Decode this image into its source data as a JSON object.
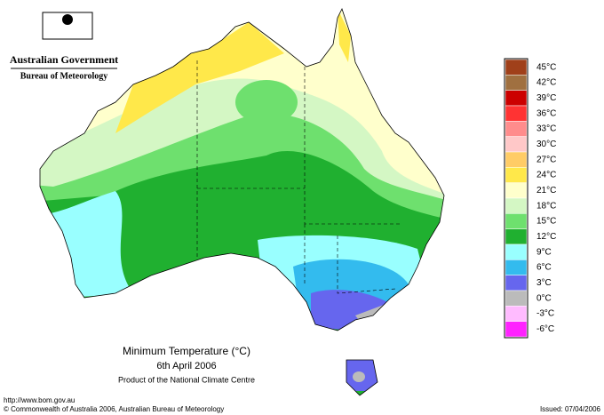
{
  "header": {
    "government": "Australian Government",
    "bureau": "Bureau of Meteorology"
  },
  "title": {
    "line1": "Minimum Temperature (°C)",
    "line2": "6th April 2006",
    "line3": "Product of the National Climate Centre"
  },
  "legend": [
    {
      "label": "45°C",
      "color": "#a0401a"
    },
    {
      "label": "42°C",
      "color": "#a07040"
    },
    {
      "label": "39°C",
      "color": "#cc0000"
    },
    {
      "label": "36°C",
      "color": "#ff3333"
    },
    {
      "label": "33°C",
      "color": "#ff8c8c"
    },
    {
      "label": "30°C",
      "color": "#ffc8c8"
    },
    {
      "label": "27°C",
      "color": "#ffcc66"
    },
    {
      "label": "24°C",
      "color": "#ffe84a"
    },
    {
      "label": "21°C",
      "color": "#ffffcc"
    },
    {
      "label": "18°C",
      "color": "#d4f7c4"
    },
    {
      "label": "15°C",
      "color": "#6ee06e"
    },
    {
      "label": "12°C",
      "color": "#20b030"
    },
    {
      "label": "9°C",
      "color": "#99ffff"
    },
    {
      "label": "6°C",
      "color": "#33bbee"
    },
    {
      "label": "3°C",
      "color": "#6666ee"
    },
    {
      "label": "0°C",
      "color": "#bbbbbb"
    },
    {
      "label": "-3°C",
      "color": "#ffbbff"
    },
    {
      "label": "-6°C",
      "color": "#ff22ff"
    }
  ],
  "footer": {
    "url": "http://www.bom.gov.au",
    "copyright": "© Commonwealth of Australia 2006, Australian Bureau of Meteorology",
    "issued": "Issued: 07/04/2006"
  }
}
